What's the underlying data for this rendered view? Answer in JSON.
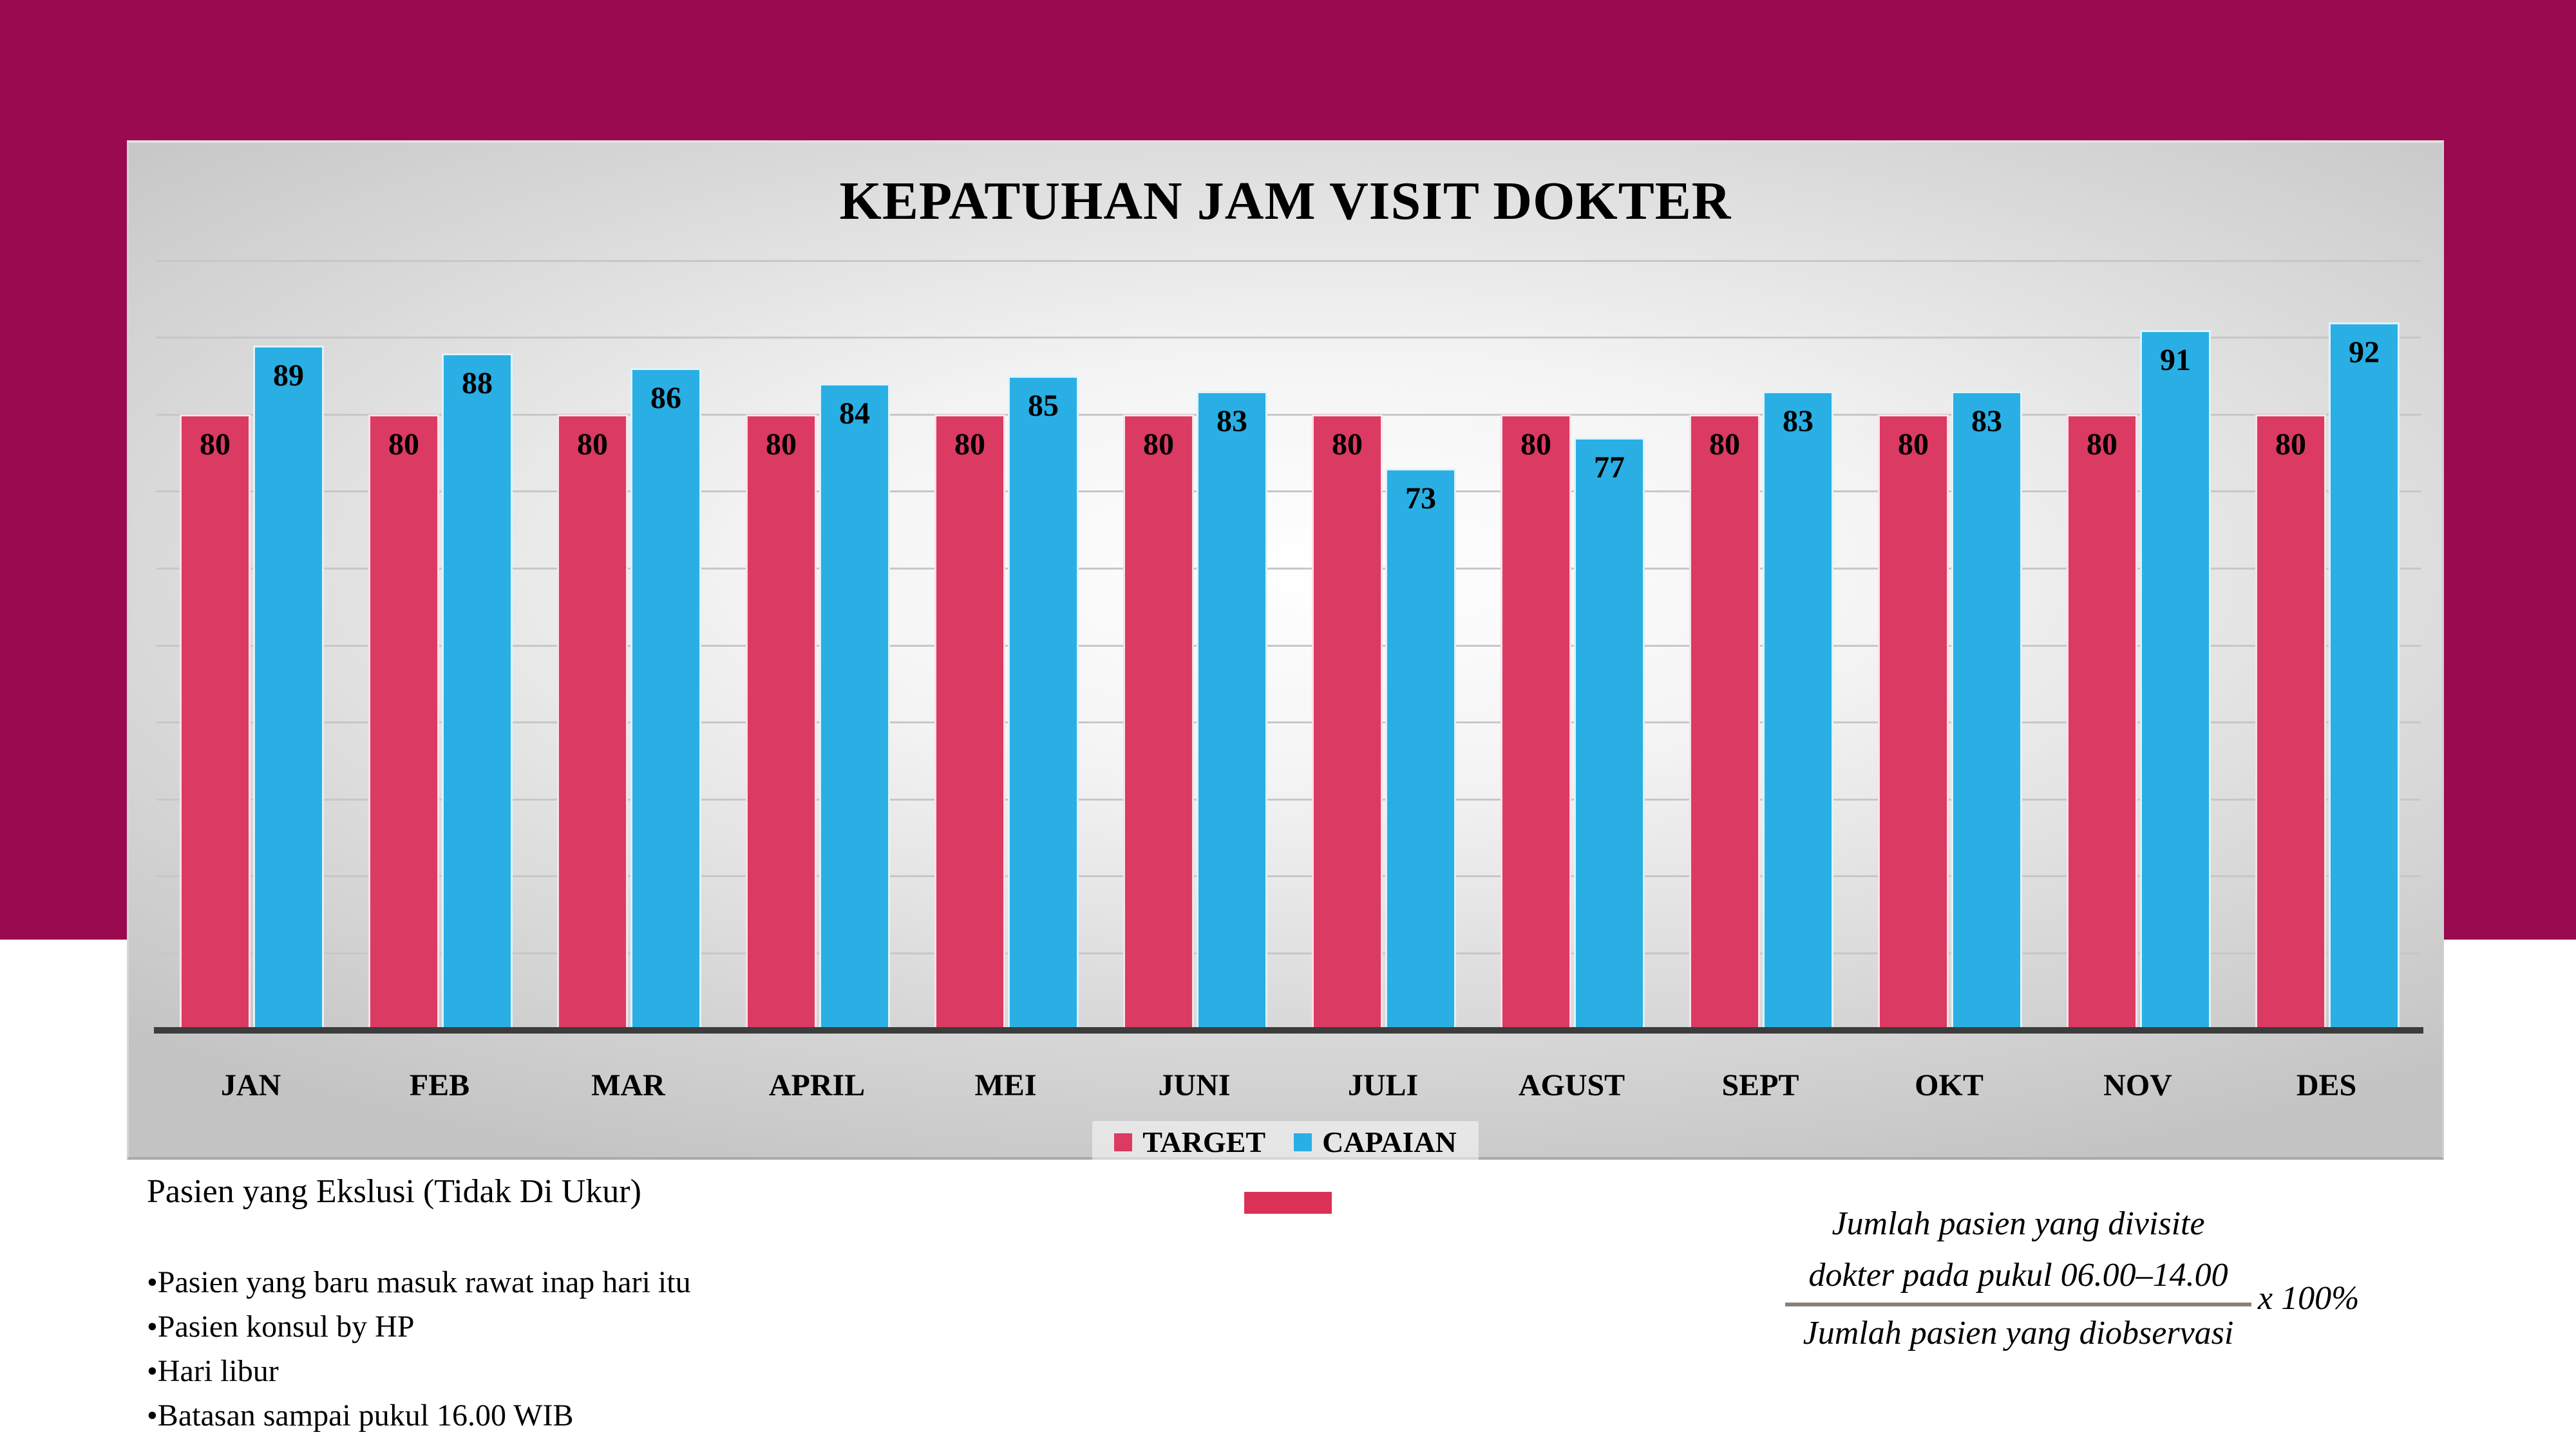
{
  "colors": {
    "banner": "#9a0a51",
    "target_bar": "#db3a63",
    "capaian_bar": "#29afe4",
    "swatch": "#dc3156",
    "axis": "#3c3c3c",
    "gridline": "#c7c7c7",
    "fraction_bar": "#8c7e76"
  },
  "chart_data": {
    "type": "bar",
    "title": "KEPATUHAN JAM VISIT DOKTER",
    "categories": [
      "JAN",
      "FEB",
      "MAR",
      "APRIL",
      "MEI",
      "JUNI",
      "JULI",
      "AGUST",
      "SEPT",
      "OKT",
      "NOV",
      "DES"
    ],
    "series": [
      {
        "name": "TARGET",
        "color": "#db3a63",
        "values": [
          80,
          80,
          80,
          80,
          80,
          80,
          80,
          80,
          80,
          80,
          80,
          80
        ]
      },
      {
        "name": "CAPAIAN",
        "color": "#29afe4",
        "values": [
          89,
          88,
          86,
          84,
          85,
          83,
          73,
          77,
          83,
          83,
          91,
          92
        ]
      }
    ],
    "xlabel": "",
    "ylabel": "",
    "ylim": [
      0,
      100
    ],
    "gridline_step": 10,
    "grid": true,
    "legend_position": "bottom",
    "data_labels": "inside-end"
  },
  "notes": {
    "heading": "Pasien yang Ekslusi (Tidak Di Ukur)",
    "items": [
      "•Pasien yang baru masuk rawat inap hari itu",
      "•Pasien konsul by HP",
      "•Hari libur",
      "•Batasan sampai pukul 16.00 WIB"
    ]
  },
  "formula": {
    "numerator_line1": "Jumlah pasien yang divisite",
    "numerator_line2": "dokter pada pukul 06.00–14.00",
    "denominator": "Jumlah pasien yang diobservasi",
    "multiplier": "x 100%"
  }
}
